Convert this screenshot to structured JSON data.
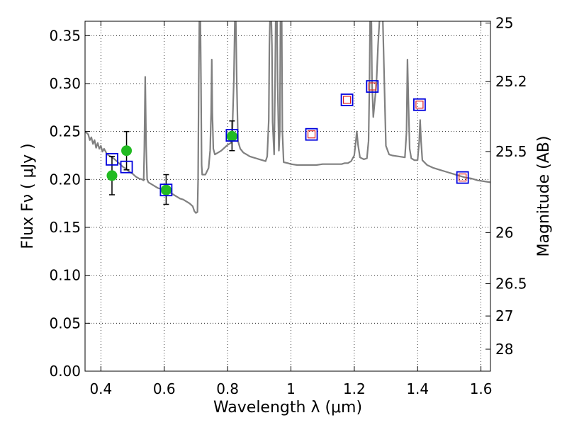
{
  "chart_data": {
    "type": "scatter",
    "title": "",
    "xlabel": "Wavelength  λ (μm)",
    "ylabel": "Flux  Fν  ( μJy )",
    "y2label": "Magnitude (AB)",
    "xlim": [
      0.35,
      1.63
    ],
    "ylim": [
      0.0,
      0.365
    ],
    "grid": true,
    "x_ticks": [
      0.4,
      0.6,
      0.8,
      1.0,
      1.2,
      1.4,
      1.6
    ],
    "x_tick_labels": [
      "0.4",
      "0.6",
      "0.8",
      "1",
      "1.2",
      "1.4",
      "1.6"
    ],
    "y_ticks": [
      0.0,
      0.05,
      0.1,
      0.15,
      0.2,
      0.25,
      0.3,
      0.35
    ],
    "y_tick_labels": [
      "0.00",
      "0.05",
      "0.10",
      "0.15",
      "0.20",
      "0.25",
      "0.30",
      "0.35"
    ],
    "y2_ticks": [
      {
        "mag": 25,
        "label": "25"
      },
      {
        "mag": 25.2,
        "label": "25.2"
      },
      {
        "mag": 25.5,
        "label": "25.5"
      },
      {
        "mag": 26,
        "label": "26"
      },
      {
        "mag": 26.5,
        "label": "26.5"
      },
      {
        "mag": 27,
        "label": "27"
      },
      {
        "mag": 28,
        "label": "28"
      }
    ],
    "series": [
      {
        "name": "model spectrum",
        "kind": "line",
        "color": "#808080",
        "points": [
          [
            0.35,
            0.25
          ],
          [
            0.36,
            0.247
          ],
          [
            0.365,
            0.241
          ],
          [
            0.37,
            0.244
          ],
          [
            0.375,
            0.237
          ],
          [
            0.38,
            0.241
          ],
          [
            0.385,
            0.233
          ],
          [
            0.39,
            0.238
          ],
          [
            0.395,
            0.232
          ],
          [
            0.4,
            0.235
          ],
          [
            0.405,
            0.229
          ],
          [
            0.41,
            0.232
          ],
          [
            0.42,
            0.226
          ],
          [
            0.43,
            0.224
          ],
          [
            0.44,
            0.222
          ],
          [
            0.45,
            0.219
          ],
          [
            0.46,
            0.216
          ],
          [
            0.47,
            0.213
          ],
          [
            0.48,
            0.211
          ],
          [
            0.49,
            0.208
          ],
          [
            0.5,
            0.206
          ],
          [
            0.51,
            0.203
          ],
          [
            0.52,
            0.201
          ],
          [
            0.53,
            0.2
          ],
          [
            0.535,
            0.199
          ],
          [
            0.537,
            0.23
          ],
          [
            0.54,
            0.307
          ],
          [
            0.543,
            0.235
          ],
          [
            0.546,
            0.2
          ],
          [
            0.55,
            0.197
          ],
          [
            0.56,
            0.195
          ],
          [
            0.57,
            0.193
          ],
          [
            0.58,
            0.191
          ],
          [
            0.59,
            0.19
          ],
          [
            0.6,
            0.189
          ],
          [
            0.61,
            0.187
          ],
          [
            0.62,
            0.186
          ],
          [
            0.63,
            0.184
          ],
          [
            0.64,
            0.182
          ],
          [
            0.65,
            0.18
          ],
          [
            0.66,
            0.179
          ],
          [
            0.67,
            0.177
          ],
          [
            0.68,
            0.175
          ],
          [
            0.69,
            0.172
          ],
          [
            0.695,
            0.167
          ],
          [
            0.7,
            0.165
          ],
          [
            0.705,
            0.166
          ],
          [
            0.707,
            0.2
          ],
          [
            0.709,
            0.3
          ],
          [
            0.711,
            0.368
          ],
          [
            0.714,
            0.368
          ],
          [
            0.716,
            0.3
          ],
          [
            0.718,
            0.215
          ],
          [
            0.72,
            0.205
          ],
          [
            0.73,
            0.205
          ],
          [
            0.74,
            0.212
          ],
          [
            0.745,
            0.23
          ],
          [
            0.748,
            0.27
          ],
          [
            0.75,
            0.325
          ],
          [
            0.752,
            0.27
          ],
          [
            0.755,
            0.232
          ],
          [
            0.76,
            0.226
          ],
          [
            0.77,
            0.228
          ],
          [
            0.78,
            0.23
          ],
          [
            0.79,
            0.233
          ],
          [
            0.8,
            0.236
          ],
          [
            0.81,
            0.238
          ],
          [
            0.815,
            0.25
          ],
          [
            0.82,
            0.305
          ],
          [
            0.823,
            0.368
          ],
          [
            0.826,
            0.368
          ],
          [
            0.829,
            0.3
          ],
          [
            0.833,
            0.24
          ],
          [
            0.84,
            0.232
          ],
          [
            0.85,
            0.228
          ],
          [
            0.86,
            0.226
          ],
          [
            0.87,
            0.224
          ],
          [
            0.88,
            0.223
          ],
          [
            0.89,
            0.222
          ],
          [
            0.9,
            0.221
          ],
          [
            0.91,
            0.22
          ],
          [
            0.92,
            0.219
          ],
          [
            0.925,
            0.224
          ],
          [
            0.93,
            0.262
          ],
          [
            0.932,
            0.34
          ],
          [
            0.934,
            0.368
          ],
          [
            0.938,
            0.368
          ],
          [
            0.94,
            0.34
          ],
          [
            0.942,
            0.26
          ],
          [
            0.947,
            0.226
          ],
          [
            0.95,
            0.3
          ],
          [
            0.952,
            0.368
          ],
          [
            0.956,
            0.368
          ],
          [
            0.958,
            0.3
          ],
          [
            0.962,
            0.23
          ],
          [
            0.965,
            0.25
          ],
          [
            0.967,
            0.368
          ],
          [
            0.971,
            0.368
          ],
          [
            0.973,
            0.25
          ],
          [
            0.977,
            0.218
          ],
          [
            0.99,
            0.217
          ],
          [
            1.0,
            0.216
          ],
          [
            1.02,
            0.215
          ],
          [
            1.04,
            0.215
          ],
          [
            1.06,
            0.215
          ],
          [
            1.08,
            0.215
          ],
          [
            1.1,
            0.216
          ],
          [
            1.12,
            0.216
          ],
          [
            1.14,
            0.216
          ],
          [
            1.16,
            0.216
          ],
          [
            1.17,
            0.217
          ],
          [
            1.18,
            0.217
          ],
          [
            1.19,
            0.219
          ],
          [
            1.2,
            0.225
          ],
          [
            1.205,
            0.24
          ],
          [
            1.208,
            0.25
          ],
          [
            1.212,
            0.236
          ],
          [
            1.218,
            0.223
          ],
          [
            1.23,
            0.221
          ],
          [
            1.24,
            0.222
          ],
          [
            1.245,
            0.24
          ],
          [
            1.248,
            0.3
          ],
          [
            1.25,
            0.368
          ],
          [
            1.254,
            0.368
          ],
          [
            1.256,
            0.3
          ],
          [
            1.26,
            0.265
          ],
          [
            1.27,
            0.3
          ],
          [
            1.275,
            0.34
          ],
          [
            1.28,
            0.368
          ],
          [
            1.29,
            0.368
          ],
          [
            1.295,
            0.3
          ],
          [
            1.3,
            0.235
          ],
          [
            1.31,
            0.226
          ],
          [
            1.32,
            0.225
          ],
          [
            1.34,
            0.224
          ],
          [
            1.36,
            0.223
          ],
          [
            1.365,
            0.25
          ],
          [
            1.368,
            0.325
          ],
          [
            1.371,
            0.28
          ],
          [
            1.375,
            0.232
          ],
          [
            1.38,
            0.222
          ],
          [
            1.39,
            0.22
          ],
          [
            1.4,
            0.22
          ],
          [
            1.405,
            0.24
          ],
          [
            1.408,
            0.262
          ],
          [
            1.411,
            0.24
          ],
          [
            1.415,
            0.22
          ],
          [
            1.43,
            0.215
          ],
          [
            1.45,
            0.212
          ],
          [
            1.47,
            0.21
          ],
          [
            1.49,
            0.208
          ],
          [
            1.51,
            0.206
          ],
          [
            1.53,
            0.204
          ],
          [
            1.55,
            0.202
          ],
          [
            1.57,
            0.201
          ],
          [
            1.59,
            0.199
          ],
          [
            1.61,
            0.198
          ],
          [
            1.63,
            0.197
          ]
        ]
      },
      {
        "name": "observed photometry",
        "kind": "points",
        "marker": "circle",
        "color": "#22bb22",
        "points": [
          {
            "x": 0.435,
            "y": 0.204,
            "yerr": [
              0.184,
              0.224
            ]
          },
          {
            "x": 0.481,
            "y": 0.23,
            "yerr": [
              0.21,
              0.25
            ]
          },
          {
            "x": 0.606,
            "y": 0.189,
            "yerr": [
              0.174,
              0.205
            ]
          },
          {
            "x": 0.814,
            "y": 0.245,
            "yerr": [
              0.23,
              0.261
            ]
          }
        ]
      },
      {
        "name": "model photometry",
        "kind": "points",
        "marker": "square",
        "color": "#0000dd",
        "points": [
          {
            "x": 0.435,
            "y": 0.221
          },
          {
            "x": 0.481,
            "y": 0.213
          },
          {
            "x": 0.606,
            "y": 0.189
          },
          {
            "x": 0.814,
            "y": 0.246
          },
          {
            "x": 1.065,
            "y": 0.247
          },
          {
            "x": 1.177,
            "y": 0.283
          },
          {
            "x": 1.257,
            "y": 0.297
          },
          {
            "x": 1.406,
            "y": 0.278
          },
          {
            "x": 1.542,
            "y": 0.202
          }
        ]
      },
      {
        "name": "observed upper limits",
        "kind": "points",
        "marker": "small-square",
        "color": "#dd2222",
        "points": [
          {
            "x": 1.065,
            "y": 0.247
          },
          {
            "x": 1.177,
            "y": 0.283
          },
          {
            "x": 1.257,
            "y": 0.297
          },
          {
            "x": 1.406,
            "y": 0.278
          },
          {
            "x": 1.542,
            "y": 0.202
          }
        ]
      }
    ]
  }
}
